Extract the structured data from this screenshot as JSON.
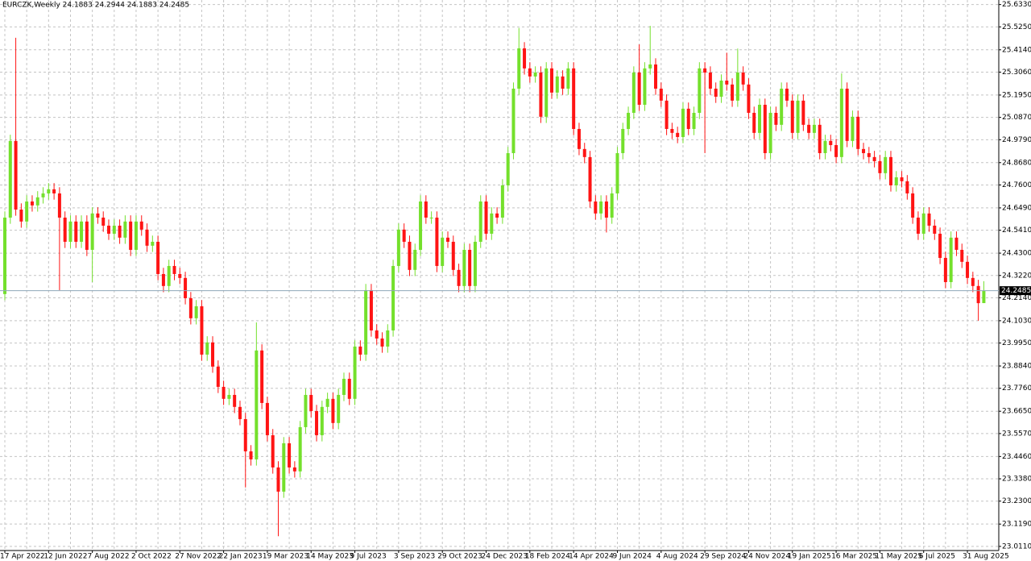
{
  "chart_data": {
    "type": "candlestick",
    "title": "EURCZK,Weekly  24.1883 24.2944 24.1883 24.2485",
    "categories": [
      "17 Apr 2022",
      null,
      null,
      null,
      null,
      null,
      null,
      null,
      "12 Jun 2022",
      null,
      null,
      null,
      null,
      null,
      null,
      null,
      "7 Aug 2022",
      null,
      null,
      null,
      null,
      null,
      null,
      null,
      "2 Oct 2022",
      null,
      null,
      null,
      null,
      null,
      null,
      null,
      "27 Nov 2022",
      null,
      null,
      null,
      null,
      null,
      null,
      null,
      "22 Jan 2023",
      null,
      null,
      null,
      null,
      null,
      null,
      null,
      "19 Mar 2023",
      null,
      null,
      null,
      null,
      null,
      null,
      null,
      "14 May 2023",
      null,
      null,
      null,
      null,
      null,
      null,
      null,
      "9 Jul 2023",
      null,
      null,
      null,
      null,
      null,
      null,
      null,
      "3 Sep 2023",
      null,
      null,
      null,
      null,
      null,
      null,
      null,
      "29 Oct 2023",
      null,
      null,
      null,
      null,
      null,
      null,
      null,
      "24 Dec 2023",
      null,
      null,
      null,
      null,
      null,
      null,
      null,
      "18 Feb 2024",
      null,
      null,
      null,
      null,
      null,
      null,
      null,
      "14 Apr 2024",
      null,
      null,
      null,
      null,
      null,
      null,
      null,
      "9 Jun 2024",
      null,
      null,
      null,
      null,
      null,
      null,
      null,
      "4 Aug 2024",
      null,
      null,
      null,
      null,
      null,
      null,
      null,
      "29 Sep 2024",
      null,
      null,
      null,
      null,
      null,
      null,
      null,
      "24 Nov 2024",
      null,
      null,
      null,
      null,
      null,
      null,
      null,
      "19 Jan 2025",
      null,
      null,
      null,
      null,
      null,
      null,
      null,
      "16 Mar 2025",
      null,
      null,
      null,
      null,
      null,
      null,
      null,
      "11 May 2025",
      null,
      null,
      null,
      null,
      null,
      null,
      null,
      "6 Jul 2025",
      null,
      null,
      null,
      null,
      null,
      null,
      null,
      "31 Aug 2025",
      null,
      null,
      null
    ],
    "open": [
      24.232,
      24.602,
      24.973,
      24.641,
      24.583,
      24.68,
      24.661,
      24.7,
      24.719,
      24.739,
      24.719,
      24.602,
      24.485,
      24.583,
      24.485,
      24.583,
      24.446,
      24.622,
      24.602,
      24.563,
      24.524,
      24.563,
      24.505,
      24.583,
      24.446,
      24.583,
      24.544,
      24.466,
      24.485,
      24.329,
      24.271,
      24.368,
      24.329,
      24.31,
      24.212,
      24.115,
      24.173,
      23.939,
      23.998,
      23.881,
      23.783,
      23.725,
      23.744,
      23.686,
      23.627,
      23.471,
      23.432,
      23.959,
      23.705,
      23.549,
      23.393,
      23.276,
      23.51,
      23.393,
      23.374,
      23.588,
      23.744,
      23.666,
      23.549,
      23.686,
      23.725,
      23.608,
      23.744,
      23.822,
      23.725,
      23.978,
      23.939,
      24.251,
      24.056,
      24.017,
      23.978,
      24.056,
      24.368,
      24.544,
      24.485,
      24.349,
      24.446,
      24.68,
      24.602,
      24.602,
      24.368,
      24.505,
      24.485,
      24.349,
      24.271,
      24.446,
      24.271,
      24.485,
      24.68,
      24.524,
      24.622,
      24.602,
      24.758,
      24.914,
      25.226,
      25.421,
      25.324,
      25.285,
      25.304,
      25.09,
      25.324,
      25.207,
      25.285,
      25.226,
      25.324,
      25.031,
      24.934,
      24.895,
      24.68,
      24.622,
      24.68,
      24.602,
      24.719,
      24.914,
      25.031,
      25.109,
      25.304,
      25.148,
      25.324,
      25.343,
      25.226,
      25.168,
      25.031,
      25.012,
      24.992,
      25.129,
      25.031,
      25.109,
      25.324,
      25.304,
      25.226,
      25.187,
      25.265,
      25.246,
      25.168,
      25.304,
      25.246,
      25.109,
      25.012,
      25.148,
      24.914,
      25.109,
      25.051,
      25.226,
      25.168,
      25.012,
      25.168,
      25.051,
      25.012,
      25.051,
      24.914,
      24.973,
      24.953,
      24.895,
      25.226,
      24.973,
      25.09,
      24.934,
      24.914,
      24.895,
      24.875,
      24.817,
      24.895,
      24.758,
      24.797,
      24.778,
      24.719,
      24.602,
      24.524,
      24.622,
      24.563,
      24.524,
      24.407,
      24.29,
      24.505,
      24.446,
      24.388,
      24.31,
      24.271,
      24.1883
    ],
    "high": [
      24.632,
      25.003,
      25.472,
      24.671,
      24.71,
      24.71,
      24.73,
      24.749,
      24.769,
      24.769,
      24.749,
      24.632,
      24.613,
      24.613,
      24.613,
      24.613,
      24.652,
      24.652,
      24.632,
      24.593,
      24.593,
      24.593,
      24.613,
      24.613,
      24.613,
      24.613,
      24.574,
      24.515,
      24.515,
      24.359,
      24.398,
      24.398,
      24.359,
      24.34,
      24.242,
      24.203,
      24.203,
      24.028,
      24.028,
      23.911,
      23.813,
      23.774,
      23.774,
      23.716,
      23.657,
      23.501,
      24.095,
      23.989,
      23.735,
      23.579,
      23.423,
      23.54,
      23.54,
      23.423,
      23.618,
      23.774,
      23.774,
      23.696,
      23.716,
      23.755,
      23.755,
      23.774,
      23.852,
      23.852,
      24.008,
      24.008,
      24.281,
      24.281,
      24.086,
      24.047,
      24.086,
      24.398,
      24.574,
      24.574,
      24.515,
      24.476,
      24.71,
      24.71,
      24.632,
      24.632,
      24.535,
      24.535,
      24.515,
      24.379,
      24.476,
      24.476,
      24.515,
      24.71,
      24.71,
      24.652,
      24.652,
      24.788,
      24.944,
      25.256,
      25.52,
      25.451,
      25.354,
      25.334,
      25.334,
      25.354,
      25.354,
      25.315,
      25.315,
      25.354,
      25.354,
      25.061,
      24.964,
      24.925,
      24.71,
      24.71,
      24.71,
      24.749,
      24.944,
      25.061,
      25.139,
      25.334,
      25.44,
      25.354,
      25.53,
      25.373,
      25.256,
      25.198,
      25.061,
      25.042,
      25.159,
      25.159,
      25.139,
      25.354,
      25.354,
      25.334,
      25.256,
      25.295,
      25.4,
      25.276,
      25.42,
      25.334,
      25.276,
      25.139,
      25.178,
      25.178,
      25.139,
      25.139,
      25.256,
      25.256,
      25.198,
      25.198,
      25.198,
      25.081,
      25.081,
      25.081,
      25.003,
      25.003,
      24.983,
      25.3,
      25.256,
      25.12,
      25.12,
      24.964,
      24.944,
      24.925,
      24.905,
      24.925,
      24.925,
      24.827,
      24.827,
      24.808,
      24.749,
      24.632,
      24.652,
      24.652,
      24.593,
      24.554,
      24.437,
      24.535,
      24.535,
      24.476,
      24.418,
      24.34,
      24.301,
      24.2944
    ],
    "low": [
      24.202,
      24.572,
      24.611,
      24.553,
      24.553,
      24.631,
      24.631,
      24.67,
      24.689,
      24.689,
      24.251,
      24.455,
      24.455,
      24.455,
      24.455,
      24.416,
      24.29,
      24.572,
      24.533,
      24.494,
      24.494,
      24.475,
      24.475,
      24.416,
      24.416,
      24.514,
      24.436,
      24.436,
      24.299,
      24.241,
      24.241,
      24.299,
      24.28,
      24.182,
      24.085,
      24.085,
      23.909,
      23.909,
      23.851,
      23.753,
      23.695,
      23.695,
      23.656,
      23.597,
      23.296,
      23.402,
      23.402,
      23.675,
      23.519,
      23.363,
      23.06,
      23.246,
      23.363,
      23.344,
      23.344,
      23.558,
      23.636,
      23.519,
      23.519,
      23.656,
      23.578,
      23.578,
      23.714,
      23.695,
      23.695,
      23.909,
      23.909,
      24.026,
      23.987,
      23.948,
      23.948,
      24.026,
      24.338,
      24.455,
      24.319,
      24.319,
      24.416,
      24.572,
      24.572,
      24.338,
      24.338,
      24.455,
      24.319,
      24.241,
      24.241,
      24.241,
      24.241,
      24.455,
      24.494,
      24.494,
      24.572,
      24.572,
      24.728,
      24.884,
      25.196,
      25.294,
      25.255,
      25.255,
      25.06,
      25.06,
      25.177,
      25.177,
      25.196,
      25.196,
      25.001,
      24.904,
      24.865,
      24.65,
      24.592,
      24.592,
      24.53,
      24.572,
      24.689,
      24.884,
      25.001,
      25.079,
      25.118,
      25.118,
      25.294,
      25.196,
      25.138,
      25.001,
      24.982,
      24.962,
      24.962,
      25.001,
      25.001,
      25.079,
      24.914,
      25.196,
      25.157,
      25.157,
      25.216,
      25.138,
      25.138,
      25.216,
      25.079,
      24.982,
      24.982,
      24.884,
      24.884,
      25.021,
      25.021,
      25.138,
      24.982,
      24.982,
      25.021,
      24.982,
      24.982,
      24.884,
      24.884,
      24.923,
      24.865,
      24.865,
      24.943,
      24.943,
      24.904,
      24.884,
      24.865,
      24.845,
      24.787,
      24.787,
      24.728,
      24.728,
      24.748,
      24.689,
      24.572,
      24.494,
      24.494,
      24.533,
      24.494,
      24.377,
      24.26,
      24.26,
      24.416,
      24.358,
      24.28,
      24.241,
      24.103,
      24.1883
    ],
    "close": [
      24.602,
      24.973,
      24.641,
      24.583,
      24.68,
      24.661,
      24.7,
      24.719,
      24.739,
      24.719,
      24.602,
      24.485,
      24.583,
      24.485,
      24.583,
      24.446,
      24.622,
      24.602,
      24.563,
      24.524,
      24.563,
      24.505,
      24.583,
      24.446,
      24.583,
      24.544,
      24.466,
      24.485,
      24.329,
      24.271,
      24.368,
      24.329,
      24.31,
      24.212,
      24.115,
      24.173,
      23.939,
      23.998,
      23.881,
      23.783,
      23.725,
      23.744,
      23.686,
      23.627,
      23.471,
      23.432,
      23.959,
      23.705,
      23.549,
      23.393,
      23.276,
      23.51,
      23.393,
      23.374,
      23.588,
      23.744,
      23.666,
      23.549,
      23.686,
      23.725,
      23.608,
      23.744,
      23.822,
      23.725,
      23.978,
      23.939,
      24.251,
      24.056,
      24.017,
      23.978,
      24.056,
      24.368,
      24.544,
      24.485,
      24.349,
      24.446,
      24.68,
      24.602,
      24.602,
      24.368,
      24.505,
      24.485,
      24.349,
      24.271,
      24.446,
      24.271,
      24.485,
      24.68,
      24.524,
      24.622,
      24.602,
      24.758,
      24.914,
      25.226,
      25.421,
      25.324,
      25.285,
      25.304,
      25.09,
      25.324,
      25.207,
      25.285,
      25.226,
      25.324,
      25.031,
      24.934,
      24.895,
      24.68,
      24.622,
      24.68,
      24.602,
      24.719,
      24.914,
      25.031,
      25.109,
      25.304,
      25.148,
      25.324,
      25.343,
      25.226,
      25.168,
      25.031,
      25.012,
      24.992,
      25.129,
      25.031,
      25.109,
      25.324,
      25.304,
      25.226,
      25.187,
      25.265,
      25.246,
      25.168,
      25.304,
      25.246,
      25.109,
      25.012,
      25.148,
      24.914,
      25.109,
      25.051,
      25.226,
      25.168,
      25.012,
      25.168,
      25.051,
      25.012,
      25.051,
      24.914,
      24.973,
      24.953,
      24.895,
      25.226,
      24.973,
      25.09,
      24.934,
      24.914,
      24.895,
      24.875,
      24.817,
      24.895,
      24.758,
      24.797,
      24.778,
      24.719,
      24.602,
      24.524,
      24.622,
      24.563,
      24.524,
      24.407,
      24.29,
      24.505,
      24.446,
      24.388,
      24.31,
      24.271,
      24.188,
      24.2485
    ],
    "ylim": [
      22.991,
      25.655
    ],
    "yticks": [
      {
        "value": 25.633,
        "label": "25.6330"
      },
      {
        "value": 25.525,
        "label": "25.5250"
      },
      {
        "value": 25.414,
        "label": "25.4140"
      },
      {
        "value": 25.306,
        "label": "25.3060"
      },
      {
        "value": 25.195,
        "label": "25.1950"
      },
      {
        "value": 25.087,
        "label": "25.0870"
      },
      {
        "value": 24.979,
        "label": "24.9790"
      },
      {
        "value": 24.868,
        "label": "24.8680"
      },
      {
        "value": 24.76,
        "label": "24.7600"
      },
      {
        "value": 24.649,
        "label": "24.6490"
      },
      {
        "value": 24.541,
        "label": "24.5410"
      },
      {
        "value": 24.43,
        "label": "24.4300"
      },
      {
        "value": 24.322,
        "label": "24.3220"
      },
      {
        "value": 24.214,
        "label": "24.2140"
      },
      {
        "value": 24.103,
        "label": "24.1030"
      },
      {
        "value": 23.995,
        "label": "23.9950"
      },
      {
        "value": 23.884,
        "label": "23.8840"
      },
      {
        "value": 23.776,
        "label": "23.7760"
      },
      {
        "value": 23.665,
        "label": "23.6650"
      },
      {
        "value": 23.557,
        "label": "23.5570"
      },
      {
        "value": 23.446,
        "label": "23.4460"
      },
      {
        "value": 23.338,
        "label": "23.3380"
      },
      {
        "value": 23.23,
        "label": "23.2300"
      },
      {
        "value": 23.119,
        "label": "23.1190"
      },
      {
        "value": 23.011,
        "label": "23.0110"
      }
    ],
    "last_price": 24.2485,
    "last_price_color": "#8fa8ba",
    "up_color": "#74e02c",
    "down_color": "#ff1414",
    "grid": true
  }
}
